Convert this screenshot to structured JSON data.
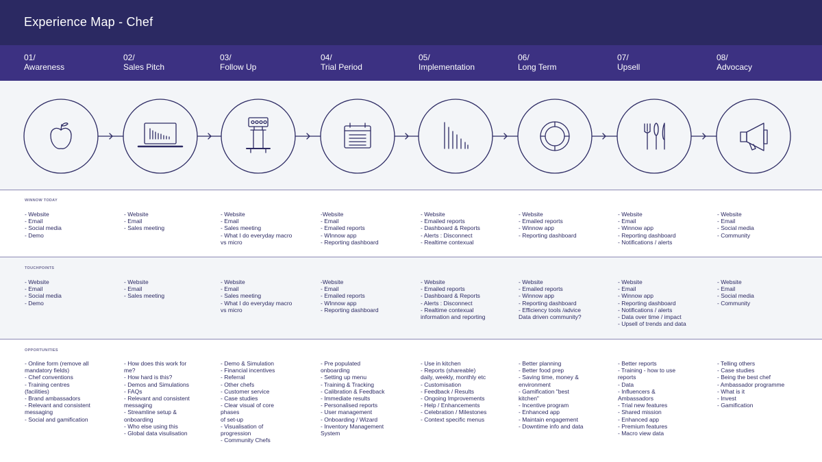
{
  "title": "Experience Map - Chef",
  "stages": [
    {
      "num": "01/",
      "name": "Awareness",
      "icon": "apple-icon"
    },
    {
      "num": "02/",
      "name": "Sales Pitch",
      "icon": "laptop-chart-icon"
    },
    {
      "num": "03/",
      "name": "Follow Up",
      "icon": "scale-icon"
    },
    {
      "num": "04/",
      "name": "Trial Period",
      "icon": "calendar-icon"
    },
    {
      "num": "05/",
      "name": "Implementation",
      "icon": "bar-chart-icon"
    },
    {
      "num": "06/",
      "name": "Long Term",
      "icon": "plate-icon"
    },
    {
      "num": "07/",
      "name": "Upsell",
      "icon": "cutlery-icon"
    },
    {
      "num": "08/",
      "name": "Advocacy",
      "icon": "megaphone-icon"
    }
  ],
  "sections": {
    "winnow_today": {
      "label": "WINNOW TODAY",
      "columns": [
        [
          "- Website",
          "- Email",
          "- Social media",
          "- Demo"
        ],
        [
          "- Website",
          "- Email",
          "- Sales meeting"
        ],
        [
          "- Website",
          "- Email",
          "- Sales meeting",
          "- What I do everyday macro",
          "   vs micro"
        ],
        [
          "-Website",
          "- Email",
          "- Emailed reports",
          "- WInnow app",
          "- Reporting dashboard"
        ],
        [
          "- Website",
          "- Emailed reports",
          "- Dashboard & Reports",
          "- Alerts : Disconnect",
          "- Realtime contexual"
        ],
        [
          "- Website",
          "- Emailed reports",
          "- Winnow app",
          "- Reporting dashboard"
        ],
        [
          "- Website",
          "- Email",
          "- Winnow app",
          "- Reporting dashboard",
          "- Notifications / alerts"
        ],
        [
          "- Website",
          "- Email",
          "- Social media",
          "- Community"
        ]
      ]
    },
    "touchpoints": {
      "label": "TOUCHPOINTS",
      "columns": [
        [
          "- Website",
          "- Email",
          "- Social media",
          "- Demo"
        ],
        [
          "- Website",
          "- Email",
          "- Sales meeting"
        ],
        [
          "- Website",
          "- Email",
          "- Sales meeting",
          "- What I do everyday macro",
          "   vs micro"
        ],
        [
          "-Website",
          "- Email",
          "- Emailed reports",
          "- WInnow app",
          "- Reporting dashboard"
        ],
        [
          "- Website",
          "- Emailed reports",
          "- Dashboard & Reports",
          "- Alerts : Disconnect",
          "- Realtime contexual",
          "   information and reporting"
        ],
        [
          "- Website",
          "- Emailed reports",
          "- Winnow app",
          "- Reporting dashboard",
          "- Efficiency tools /advice",
          "  Data driven community?"
        ],
        [
          "- Website",
          "- Email",
          "- Winnow app",
          "- Reporting dashboard",
          "- Notifications / alerts",
          "- Data over time / impact",
          "- Upsell of trends and data"
        ],
        [
          "- Website",
          "- Email",
          "- Social media",
          "- Community"
        ]
      ]
    },
    "opportunities": {
      "label": "OPPORTUNITIES",
      "columns": [
        [
          "- Online form (remove all",
          "   mandatory fields)",
          "- Chef conventions",
          "- Training centres",
          "   (facilities)",
          "- Brand ambassadors",
          "- Relevant and consistent",
          "   messaging",
          "- Social and gamification"
        ],
        [
          "- How does this work for",
          "   me?",
          "- How hard is this?",
          "- Demos and Simulations",
          "- FAQs",
          "- Relevant and consistent",
          "   messaging",
          "- Streamline setup &",
          "   onboarding",
          "- Who else using this",
          "- Global data visulisation"
        ],
        [
          "- Demo & Simulation",
          "- Financial incentives",
          "- Referral",
          "- Other chefs",
          "- Customer service",
          "- Case studies",
          "- Clear visual of core",
          "   phases",
          "   of set-up",
          "- Visualisation of",
          "   progression",
          "- Community Chefs"
        ],
        [
          "- Pre populated",
          "   onboarding",
          "- Setting up menu",
          "- Training & Tracking",
          "- Calibration & Feedback",
          "- Immediate results",
          "- Personalised reports",
          "- User management",
          "- Onboarding / Wizard",
          "- Inventory Management",
          "   System"
        ],
        [
          "- Use in kitchen",
          "- Reports (shareable)",
          "   daily, weekly, monthly etc",
          "- Customisation",
          "- Feedback / Results",
          "- Ongoing Improvements",
          "- Help / Enhancements",
          "- Celebration / Milestones",
          "- Context specific menus"
        ],
        [
          "- Better planning",
          "- Better food prep",
          "- Saving time, money &",
          "   environment",
          "- Gamification \"best",
          "   kitchen\"",
          "- Incentive program",
          "- Enhanced app",
          "- Maintain engagement",
          "- Downtime info and data"
        ],
        [
          "- Better reports",
          "- Training - how to use",
          "   reports",
          "- Data",
          "- Influencers &",
          "   Ambassadors",
          "- Trial new features",
          "- Shared mission",
          "- Enhanced app",
          "- Premium features",
          "- Macro view data"
        ],
        [
          "- Telling others",
          "- Case studies",
          "- Being the best chef",
          "- Ambassador programme",
          "- What is it",
          "- Invest",
          "- Gamification"
        ]
      ]
    }
  },
  "colors": {
    "title_bar": "#2b2962",
    "stage_bar": "#3c3182",
    "line": "#2c2a63",
    "band": "#f3f5f8"
  }
}
